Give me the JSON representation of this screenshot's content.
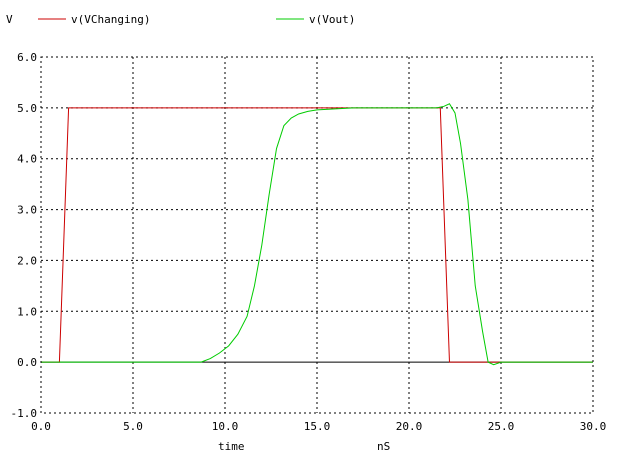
{
  "chart_data": {
    "type": "line",
    "ylabel": "V",
    "xlabel": "time",
    "xunit": "nS",
    "xlim": [
      0,
      30
    ],
    "ylim": [
      -1,
      6
    ],
    "xticks": [
      0,
      5,
      10,
      15,
      20,
      25,
      30
    ],
    "yticks": [
      -1,
      0,
      1,
      2,
      3,
      4,
      5,
      6
    ],
    "xtick_labels": [
      "0.0",
      "5.0",
      "10.0",
      "15.0",
      "20.0",
      "25.0",
      "30.0"
    ],
    "ytick_labels": [
      "-1.0",
      "0.0",
      "1.0",
      "2.0",
      "3.0",
      "4.0",
      "5.0",
      "6.0"
    ],
    "grid": true,
    "legend_position": "top",
    "series": [
      {
        "name": "v(VChanging)",
        "color": "#cc0000",
        "x": [
          0,
          1.0,
          1.5,
          21.7,
          22.2,
          30
        ],
        "y": [
          0,
          0,
          5,
          5,
          0,
          0
        ]
      },
      {
        "name": "v(Vout)",
        "color": "#00cc00",
        "x": [
          0,
          8.7,
          9.2,
          9.7,
          10.2,
          10.7,
          11.2,
          11.6,
          12.0,
          12.4,
          12.8,
          13.2,
          13.6,
          14.0,
          14.5,
          15.0,
          16.0,
          17.0,
          21.5,
          21.9,
          22.2,
          22.5,
          22.8,
          23.2,
          23.6,
          24.0,
          24.3,
          24.6,
          25.0,
          30
        ],
        "y": [
          0,
          0,
          0.07,
          0.18,
          0.32,
          0.55,
          0.9,
          1.5,
          2.3,
          3.3,
          4.2,
          4.65,
          4.8,
          4.88,
          4.93,
          4.96,
          4.98,
          5.0,
          5.0,
          5.03,
          5.08,
          4.9,
          4.3,
          3.2,
          1.5,
          0.6,
          0.0,
          -0.05,
          0.0,
          0.0
        ]
      }
    ]
  }
}
